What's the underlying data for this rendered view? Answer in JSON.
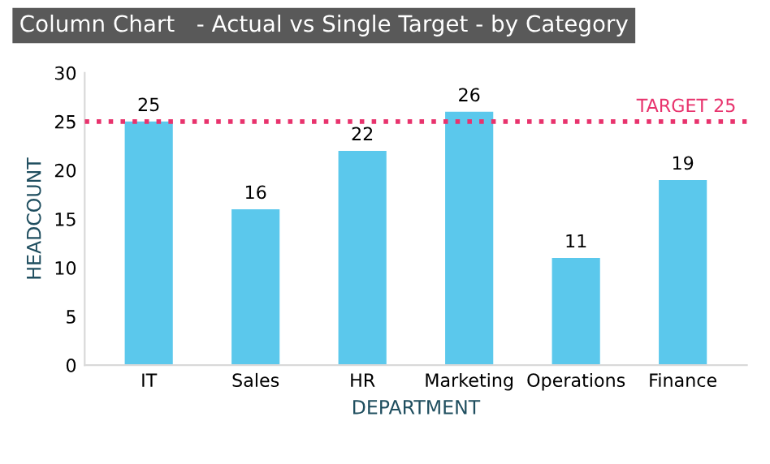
{
  "chart_data": {
    "type": "bar",
    "title": "Column Chart   - Actual vs Single Target - by Category",
    "xlabel": "DEPARTMENT",
    "ylabel": "HEADCOUNT",
    "categories": [
      "IT",
      "Sales",
      "HR",
      "Marketing",
      "Operations",
      "Finance"
    ],
    "values": [
      25,
      16,
      22,
      26,
      11,
      19
    ],
    "color": "#5bc8ec",
    "data_labels": true,
    "ylim": [
      0,
      30
    ],
    "yticks": [
      0,
      5,
      10,
      15,
      20,
      25,
      30
    ],
    "ref_lines": [
      {
        "axis": "y",
        "value": 25,
        "label": "TARGET 25",
        "color": "#e8336d",
        "line_style": "dotted"
      }
    ]
  }
}
